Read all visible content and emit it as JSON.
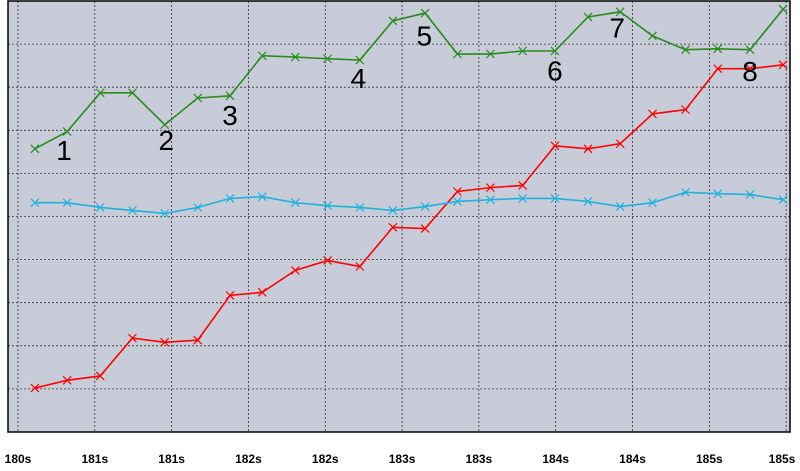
{
  "chart_data": {
    "type": "line",
    "x": [
      0.22,
      0.64,
      1.07,
      1.49,
      1.91,
      2.34,
      2.76,
      3.18,
      3.61,
      4.03,
      4.45,
      4.88,
      5.3,
      5.72,
      6.15,
      6.57,
      6.99,
      7.42,
      7.84,
      8.26,
      8.69,
      9.11,
      9.53,
      9.96
    ],
    "series": [
      {
        "color": "#2a8a1e",
        "values": [
          6.57,
          6.97,
          7.87,
          7.87,
          7.13,
          7.75,
          7.8,
          8.73,
          8.7,
          8.66,
          8.63,
          9.54,
          9.72,
          8.77,
          8.77,
          8.84,
          8.84,
          9.63,
          9.75,
          9.19,
          8.87,
          8.89,
          8.87,
          9.81
        ]
      },
      {
        "color": "#ff0000",
        "values": [
          1.02,
          1.2,
          1.3,
          2.18,
          2.08,
          2.13,
          3.17,
          3.24,
          3.75,
          3.98,
          3.84,
          4.75,
          4.72,
          5.58,
          5.67,
          5.72,
          6.64,
          6.57,
          6.69,
          7.38,
          7.48,
          8.43,
          8.43,
          8.52
        ]
      },
      {
        "color": "#21b1dc",
        "values": [
          5.32,
          5.32,
          5.21,
          5.14,
          5.07,
          5.21,
          5.42,
          5.46,
          5.32,
          5.25,
          5.21,
          5.14,
          5.23,
          5.35,
          5.39,
          5.42,
          5.42,
          5.35,
          5.23,
          5.32,
          5.56,
          5.53,
          5.51,
          5.39
        ]
      }
    ],
    "annotations": [
      {
        "text": "1",
        "x": 0.6,
        "y": 6.48
      },
      {
        "text": "2",
        "x": 1.93,
        "y": 6.71
      },
      {
        "text": "3",
        "x": 2.76,
        "y": 7.29
      },
      {
        "text": "4",
        "x": 4.43,
        "y": 8.15
      },
      {
        "text": "5",
        "x": 5.29,
        "y": 9.14
      },
      {
        "text": "6",
        "x": 6.99,
        "y": 8.33
      },
      {
        "text": "7",
        "x": 7.8,
        "y": 9.33
      },
      {
        "text": "8",
        "x": 9.53,
        "y": 8.31
      }
    ],
    "xlim": [
      -0.13,
      10.05
    ],
    "ylim": [
      0,
      10
    ],
    "xticks": [
      {
        "value": 0,
        "label": "180s"
      },
      {
        "value": 1,
        "label": "181s"
      },
      {
        "value": 2,
        "label": "181s"
      },
      {
        "value": 3,
        "label": "182s"
      },
      {
        "value": 4,
        "label": "182s"
      },
      {
        "value": 5,
        "label": "183s"
      },
      {
        "value": 6,
        "label": "183s"
      },
      {
        "value": 7,
        "label": "184s"
      },
      {
        "value": 8,
        "label": "184s"
      },
      {
        "value": 9,
        "label": "185s"
      },
      {
        "value": 10,
        "label": "185s"
      }
    ],
    "yticks": [
      1,
      2,
      3,
      4,
      5,
      6,
      7,
      8,
      9
    ],
    "grid": true,
    "background": "#c8ccd8"
  }
}
